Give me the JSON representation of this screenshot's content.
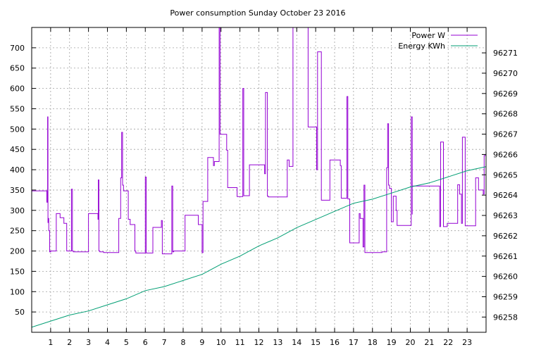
{
  "chart_data": {
    "type": "line",
    "title": "Power consumption Sunday October 23 2016",
    "xlabel": "",
    "ylabel": "",
    "y2label": "",
    "xlim": [
      0,
      24
    ],
    "ylim": [
      0,
      750
    ],
    "y2lim": [
      96257.25,
      96272.25
    ],
    "x_ticks": [
      1,
      2,
      3,
      4,
      5,
      6,
      7,
      8,
      9,
      10,
      11,
      12,
      13,
      14,
      15,
      16,
      17,
      18,
      19,
      20,
      21,
      22,
      23
    ],
    "y_ticks": [
      50,
      100,
      150,
      200,
      250,
      300,
      350,
      400,
      450,
      500,
      550,
      600,
      650,
      700
    ],
    "y2_ticks": [
      96258,
      96259,
      96260,
      96261,
      96262,
      96263,
      96264,
      96265,
      96266,
      96267,
      96268,
      96269,
      96270,
      96271
    ],
    "grid": true,
    "legend_position": "top-right",
    "series": [
      {
        "name": "Power W",
        "axis": "y",
        "color": "#9400d3",
        "step": true,
        "x": [
          0,
          0.8,
          0.84,
          0.86,
          0.87,
          0.9,
          0.95,
          1.0,
          1.3,
          1.5,
          1.7,
          1.85,
          2.1,
          2.15,
          2.2,
          3.0,
          3.5,
          3.52,
          3.55,
          3.6,
          3.8,
          4.6,
          4.7,
          4.75,
          4.8,
          4.85,
          5.1,
          5.2,
          5.45,
          5.5,
          6.0,
          6.05,
          6.1,
          6.4,
          6.85,
          6.9,
          6.95,
          7.4,
          7.45,
          7.5,
          8.1,
          8.8,
          9.0,
          9.05,
          9.3,
          9.6,
          9.65,
          9.9,
          9.95,
          10.3,
          10.35,
          10.85,
          11.15,
          11.2,
          11.5,
          11.65,
          12.3,
          12.35,
          12.45,
          12.5,
          13.5,
          13.6,
          13.8,
          14.6,
          15.05,
          15.1,
          15.3,
          15.75,
          16.3,
          16.35,
          16.65,
          16.7,
          16.8,
          17.3,
          17.35,
          17.5,
          17.55,
          17.6,
          18.5,
          18.75,
          18.8,
          18.85,
          18.9,
          19.0,
          19.1,
          19.25,
          19.3,
          20.0,
          20.05,
          20.1,
          20.1,
          20.6,
          21.55,
          21.6,
          21.75,
          21.95,
          22.5,
          22.6,
          22.7,
          22.75,
          22.9,
          23.45,
          23.6,
          23.85,
          23.9,
          24.0
        ],
        "values": [
          348,
          320,
          530,
          270,
          280,
          250,
          198,
          200,
          292,
          282,
          268,
          200,
          352,
          200,
          198,
          292,
          278,
          375,
          200,
          198,
          196,
          280,
          380,
          492,
          362,
          348,
          278,
          265,
          200,
          195,
          382,
          195,
          195,
          258,
          275,
          193,
          193,
          360,
          198,
          200,
          288,
          265,
          196,
          322,
          430,
          410,
          420,
          750,
          487,
          448,
          356,
          334,
          600,
          336,
          412,
          412,
          390,
          590,
          335,
          333,
          424,
          408,
          750,
          505,
          400,
          690,
          325,
          424,
          410,
          330,
          580,
          328,
          220,
          292,
          280,
          210,
          362,
          196,
          198,
          405,
          513,
          362,
          354,
          272,
          335,
          300,
          263,
          263,
          530,
          290,
          360,
          360,
          260,
          468,
          260,
          268,
          363,
          340,
          268,
          480,
          262,
          380,
          350,
          340,
          435,
          600
        ]
      },
      {
        "name": "Energy KWh",
        "axis": "y2",
        "color": "#009e73",
        "step": false,
        "x": [
          0,
          1,
          2,
          3,
          4,
          5,
          6,
          7,
          8,
          9,
          10,
          11,
          12,
          13,
          14,
          15,
          16,
          17,
          18,
          19,
          20,
          21,
          22,
          23,
          24
        ],
        "values": [
          96257.5,
          96257.8,
          96258.1,
          96258.3,
          96258.6,
          96258.9,
          96259.3,
          96259.5,
          96259.8,
          96260.1,
          96260.6,
          96261.0,
          96261.5,
          96261.9,
          96262.4,
          96262.8,
          96263.2,
          96263.6,
          96263.8,
          96264.1,
          96264.4,
          96264.6,
          96264.9,
          96265.2,
          96265.4
        ]
      }
    ]
  }
}
